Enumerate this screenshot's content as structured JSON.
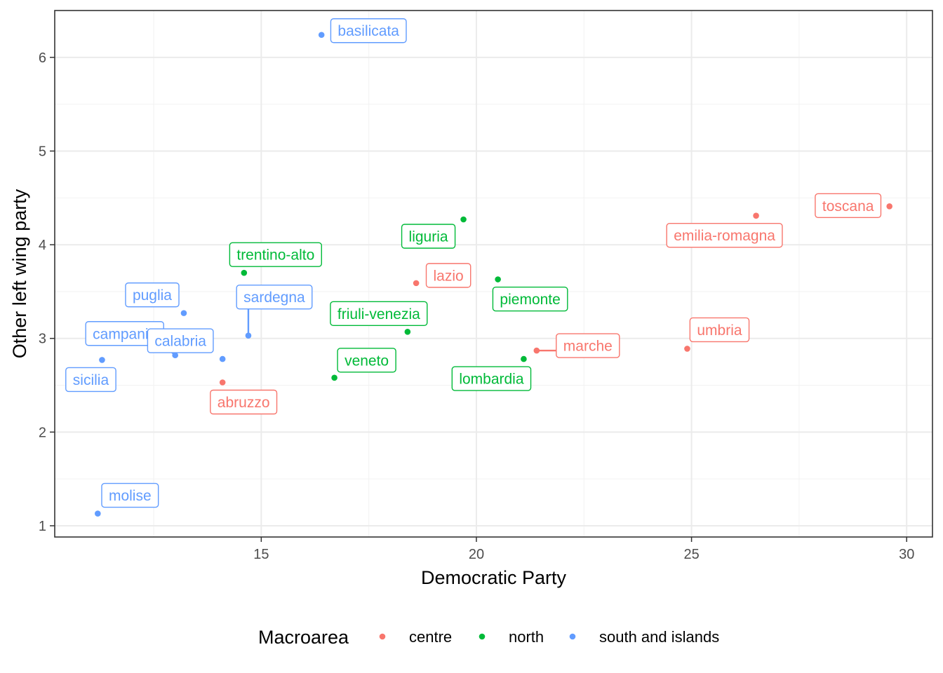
{
  "chart_data": {
    "type": "scatter",
    "xlabel": "Democratic Party",
    "ylabel": "Other left wing party",
    "xlim": [
      10.2,
      30.6
    ],
    "ylim": [
      0.88,
      6.5
    ],
    "x_ticks": [
      15,
      20,
      25,
      30
    ],
    "y_ticks": [
      1,
      2,
      3,
      4,
      5,
      6
    ],
    "grid": true,
    "legend": {
      "title": "Macroarea",
      "placement": "bottom",
      "entries": [
        {
          "label": "centre",
          "color": "#F8766D"
        },
        {
          "label": "north",
          "color": "#00BA38"
        },
        {
          "label": "south and islands",
          "color": "#619CFF"
        }
      ]
    },
    "points": [
      {
        "label": "basilicata",
        "x": 16.4,
        "y": 6.24,
        "group": "south and islands"
      },
      {
        "label": "toscana",
        "x": 29.6,
        "y": 4.41,
        "group": "centre"
      },
      {
        "label": "emilia-romagna",
        "x": 26.5,
        "y": 4.31,
        "group": "centre"
      },
      {
        "label": "liguria",
        "x": 19.7,
        "y": 4.27,
        "group": "north"
      },
      {
        "label": "trentino-alto",
        "x": 14.6,
        "y": 3.7,
        "group": "north"
      },
      {
        "label": "lazio",
        "x": 18.6,
        "y": 3.59,
        "group": "centre"
      },
      {
        "label": "piemonte",
        "x": 20.5,
        "y": 3.63,
        "group": "north"
      },
      {
        "label": "puglia",
        "x": 13.2,
        "y": 3.27,
        "group": "south and islands"
      },
      {
        "label": "sardegna",
        "x": 14.7,
        "y": 3.03,
        "group": "south and islands"
      },
      {
        "label": "friuli-venezia",
        "x": 18.4,
        "y": 3.07,
        "group": "north"
      },
      {
        "label": "campania",
        "x": 13.0,
        "y": 2.82,
        "group": "south and islands"
      },
      {
        "label": "calabria",
        "x": 14.1,
        "y": 2.78,
        "group": "south and islands"
      },
      {
        "label": "marche",
        "x": 21.4,
        "y": 2.87,
        "group": "centre"
      },
      {
        "label": "umbria",
        "x": 24.9,
        "y": 2.89,
        "group": "centre"
      },
      {
        "label": "lombardia",
        "x": 21.1,
        "y": 2.78,
        "group": "north"
      },
      {
        "label": "sicilia",
        "x": 11.3,
        "y": 2.77,
        "group": "south and islands"
      },
      {
        "label": "veneto",
        "x": 16.7,
        "y": 2.58,
        "group": "north"
      },
      {
        "label": "abruzzo",
        "x": 14.1,
        "y": 2.53,
        "group": "centre"
      },
      {
        "label": "molise",
        "x": 11.2,
        "y": 1.13,
        "group": "south and islands"
      }
    ]
  }
}
